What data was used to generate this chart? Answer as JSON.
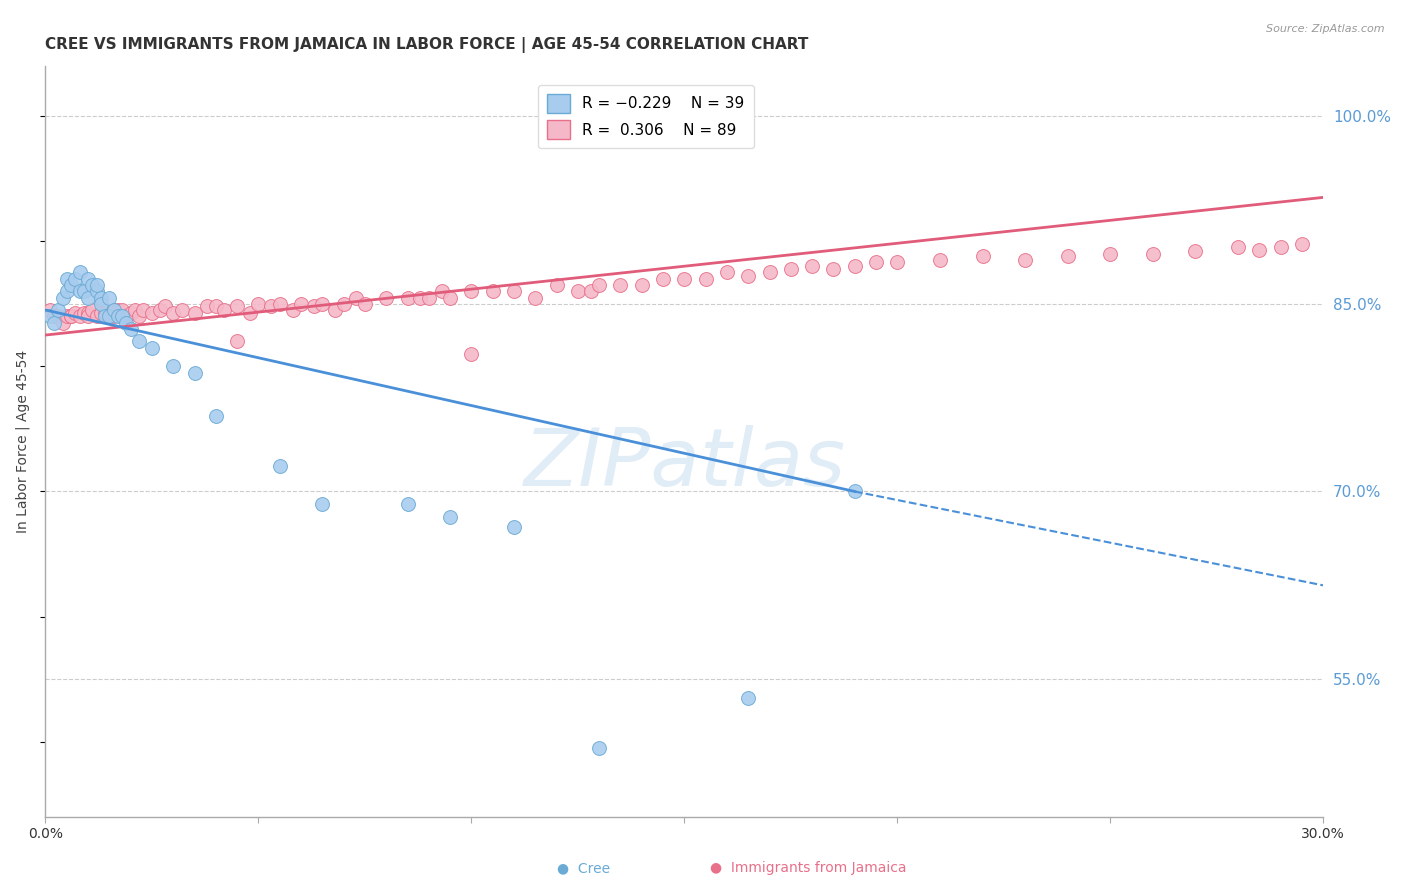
{
  "title": "CREE VS IMMIGRANTS FROM JAMAICA IN LABOR FORCE | AGE 45-54 CORRELATION CHART",
  "source": "Source: ZipAtlas.com",
  "ylabel": "In Labor Force | Age 45-54",
  "right_yticks": [
    0.55,
    0.7,
    0.85,
    1.0
  ],
  "right_yticklabels": [
    "55.0%",
    "70.0%",
    "85.0%",
    "100.0%"
  ],
  "bottom_xticks": [
    0.0,
    0.05,
    0.1,
    0.15,
    0.2,
    0.25,
    0.3
  ],
  "xlim": [
    0.0,
    0.3
  ],
  "ylim": [
    0.44,
    1.04
  ],
  "cree_R": -0.229,
  "cree_N": 39,
  "jamaica_R": 0.306,
  "jamaica_N": 89,
  "cree_color": "#A8CCEE",
  "cree_edge_color": "#6AAAD4",
  "cree_line_color": "#4A90D9",
  "jamaica_color": "#F5B8C8",
  "jamaica_edge_color": "#E8708A",
  "jamaica_line_color": "#E05C7A",
  "watermark": "ZIPatlas",
  "watermark_color": "#C8DDF0",
  "background_color": "#FFFFFF",
  "grid_color": "#CCCCCC",
  "axis_color": "#AAAAAA",
  "right_label_color": "#5B9BD5",
  "title_fontsize": 11,
  "axis_label_fontsize": 10,
  "tick_fontsize": 10,
  "cree_trend_x0": 0.0,
  "cree_trend_y0": 0.845,
  "cree_trend_x1": 0.19,
  "cree_trend_y1": 0.7,
  "cree_trend_xdash": 0.3,
  "cree_trend_ydash": 0.625,
  "jamaica_trend_x0": 0.0,
  "jamaica_trend_y0": 0.825,
  "jamaica_trend_x1": 0.3,
  "jamaica_trend_y1": 0.935,
  "cree_x": [
    0.001,
    0.002,
    0.003,
    0.004,
    0.005,
    0.005,
    0.006,
    0.007,
    0.008,
    0.008,
    0.009,
    0.01,
    0.01,
    0.011,
    0.012,
    0.012,
    0.013,
    0.013,
    0.014,
    0.015,
    0.015,
    0.016,
    0.017,
    0.018,
    0.019,
    0.02,
    0.022,
    0.025,
    0.03,
    0.035,
    0.04,
    0.055,
    0.065,
    0.085,
    0.095,
    0.11,
    0.13,
    0.165,
    0.19
  ],
  "cree_y": [
    0.84,
    0.835,
    0.845,
    0.855,
    0.87,
    0.86,
    0.865,
    0.87,
    0.875,
    0.86,
    0.86,
    0.855,
    0.87,
    0.865,
    0.86,
    0.865,
    0.855,
    0.85,
    0.84,
    0.855,
    0.84,
    0.845,
    0.84,
    0.84,
    0.835,
    0.83,
    0.82,
    0.815,
    0.8,
    0.795,
    0.76,
    0.72,
    0.69,
    0.69,
    0.68,
    0.672,
    0.495,
    0.535,
    0.7
  ],
  "jamaica_x": [
    0.001,
    0.002,
    0.003,
    0.004,
    0.005,
    0.006,
    0.006,
    0.007,
    0.008,
    0.009,
    0.01,
    0.01,
    0.011,
    0.012,
    0.013,
    0.014,
    0.015,
    0.016,
    0.016,
    0.017,
    0.018,
    0.019,
    0.02,
    0.021,
    0.022,
    0.023,
    0.025,
    0.027,
    0.028,
    0.03,
    0.032,
    0.035,
    0.038,
    0.04,
    0.042,
    0.045,
    0.048,
    0.05,
    0.053,
    0.055,
    0.058,
    0.06,
    0.063,
    0.065,
    0.068,
    0.07,
    0.073,
    0.075,
    0.08,
    0.085,
    0.088,
    0.09,
    0.093,
    0.095,
    0.1,
    0.105,
    0.11,
    0.115,
    0.12,
    0.125,
    0.128,
    0.13,
    0.135,
    0.14,
    0.145,
    0.15,
    0.155,
    0.16,
    0.165,
    0.17,
    0.175,
    0.18,
    0.185,
    0.19,
    0.195,
    0.2,
    0.21,
    0.22,
    0.23,
    0.24,
    0.25,
    0.26,
    0.27,
    0.28,
    0.285,
    0.29,
    0.295,
    0.045,
    0.1
  ],
  "jamaica_y": [
    0.845,
    0.84,
    0.84,
    0.835,
    0.84,
    0.84,
    0.84,
    0.843,
    0.84,
    0.843,
    0.843,
    0.84,
    0.845,
    0.84,
    0.843,
    0.843,
    0.84,
    0.845,
    0.84,
    0.845,
    0.845,
    0.84,
    0.843,
    0.845,
    0.84,
    0.845,
    0.843,
    0.845,
    0.848,
    0.843,
    0.845,
    0.843,
    0.848,
    0.848,
    0.845,
    0.848,
    0.843,
    0.85,
    0.848,
    0.85,
    0.845,
    0.85,
    0.848,
    0.85,
    0.845,
    0.85,
    0.855,
    0.85,
    0.855,
    0.855,
    0.855,
    0.855,
    0.86,
    0.855,
    0.86,
    0.86,
    0.86,
    0.855,
    0.865,
    0.86,
    0.86,
    0.865,
    0.865,
    0.865,
    0.87,
    0.87,
    0.87,
    0.875,
    0.872,
    0.875,
    0.878,
    0.88,
    0.878,
    0.88,
    0.883,
    0.883,
    0.885,
    0.888,
    0.885,
    0.888,
    0.89,
    0.89,
    0.892,
    0.895,
    0.893,
    0.895,
    0.898,
    0.82,
    0.81
  ]
}
